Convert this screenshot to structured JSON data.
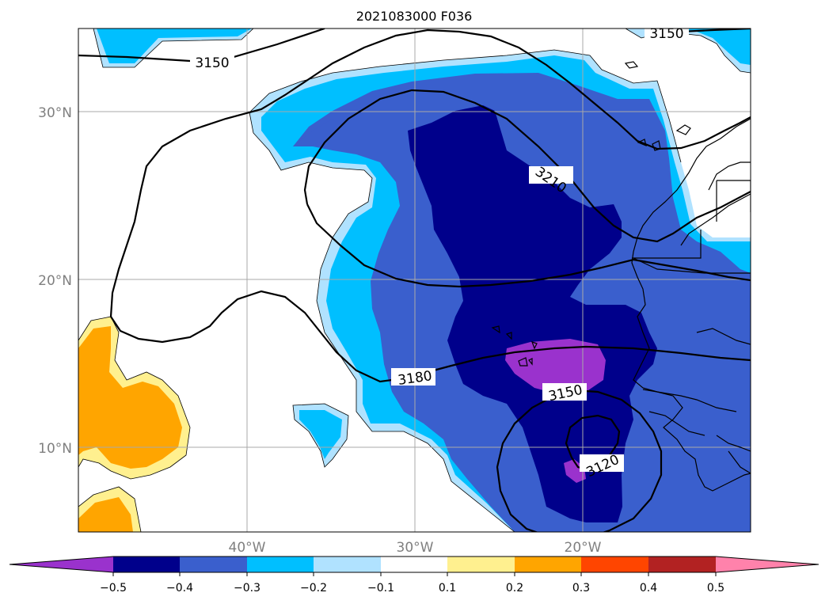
{
  "title": "2021083000 F036",
  "lat_labels": [
    "30°N",
    "20°N",
    "10°N"
  ],
  "lon_labels": [
    "40°W",
    "30°W",
    "20°W"
  ],
  "contour_labels": [
    "3150",
    "3150",
    "3210",
    "3180",
    "3150",
    "3120"
  ],
  "colorbar": {
    "colors": [
      "#9a32cd",
      "#00008b",
      "#3a5fcd",
      "#00bfff",
      "#b0e2ff",
      "#ffffff",
      "#fff08f",
      "#ffa500",
      "#ff4500",
      "#b22222",
      "#ff82ab"
    ],
    "ticks": [
      "−0.5",
      "−0.4",
      "−0.3",
      "−0.2",
      "−0.1",
      "0.1",
      "0.2",
      "0.3",
      "0.4",
      "0.5"
    ]
  },
  "colors": {
    "darkviolet": "#9a32cd",
    "navy": "#00008b",
    "royalblue": "#3a5fcd",
    "deepskyblue": "#00bfff",
    "lightblue": "#b0e2ff",
    "lightyellow": "#fff08f",
    "orange": "#ffa500"
  }
}
